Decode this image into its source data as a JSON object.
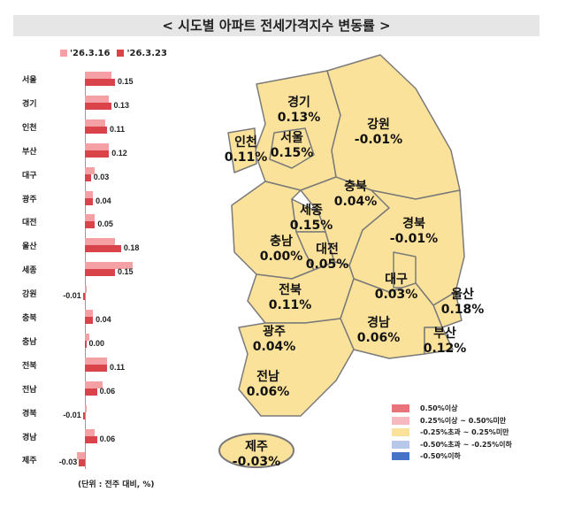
{
  "title": "< 시도별 아파트 전세가격지수 변동률 >",
  "chart_data": {
    "type": "bar",
    "orientation": "horizontal",
    "categories": [
      "서울",
      "경기",
      "인천",
      "부산",
      "대구",
      "광주",
      "대전",
      "울산",
      "세종",
      "강원",
      "충북",
      "충남",
      "전북",
      "전남",
      "경북",
      "경남",
      "제주"
    ],
    "series": [
      {
        "name": "'26.3.16",
        "color": "#f4a0a4",
        "values": [
          0.13,
          0.12,
          0.1,
          0.12,
          0.05,
          0.04,
          0.05,
          0.15,
          0.24,
          0.0,
          0.04,
          0.02,
          0.11,
          0.09,
          0.01,
          0.05,
          -0.04
        ]
      },
      {
        "name": "'26.3.23",
        "color": "#d9434a",
        "values": [
          0.15,
          0.13,
          0.11,
          0.12,
          0.03,
          0.04,
          0.05,
          0.18,
          0.15,
          -0.01,
          0.04,
          0.0,
          0.11,
          0.06,
          -0.01,
          0.06,
          -0.03
        ]
      }
    ],
    "labels": [
      "0.15",
      "0.13",
      "0.11",
      "0.12",
      "0.03",
      "0.04",
      "0.05",
      "0.18",
      "0.15",
      "-0.01",
      "0.04",
      "0.00",
      "0.11",
      "0.06",
      "-0.01",
      "0.06",
      "-0.03"
    ],
    "unit_note": "(단위 : 전주 대비, %)"
  },
  "map": {
    "fill": "#fbe29a",
    "regions": [
      {
        "name": "경기",
        "value": "0.13%"
      },
      {
        "name": "강원",
        "value": "-0.01%"
      },
      {
        "name": "인천",
        "value": "0.11%"
      },
      {
        "name": "서울",
        "value": "0.15%"
      },
      {
        "name": "충북",
        "value": "0.04%"
      },
      {
        "name": "세종",
        "value": "0.15%"
      },
      {
        "name": "충남",
        "value": "0.00%"
      },
      {
        "name": "대전",
        "value": "0.05%"
      },
      {
        "name": "경북",
        "value": "-0.01%"
      },
      {
        "name": "대구",
        "value": "0.03%"
      },
      {
        "name": "전북",
        "value": "0.11%"
      },
      {
        "name": "울산",
        "value": "0.18%"
      },
      {
        "name": "광주",
        "value": "0.04%"
      },
      {
        "name": "경남",
        "value": "0.06%"
      },
      {
        "name": "부산",
        "value": "0.12%"
      },
      {
        "name": "전남",
        "value": "0.06%"
      },
      {
        "name": "제주",
        "value": "-0.03%"
      }
    ],
    "legend": [
      {
        "label": "0.50%이상",
        "color": "#e8737a"
      },
      {
        "label": "0.25%이상 ~ 0.50%미만",
        "color": "#f7b8c0"
      },
      {
        "label": "-0.25%초과 ~ 0.25%미만",
        "color": "#fbe29a"
      },
      {
        "label": "-0.50%초과 ~ -0.25%이하",
        "color": "#b8c8ea"
      },
      {
        "label": "-0.50%이하",
        "color": "#4472c4"
      }
    ]
  }
}
